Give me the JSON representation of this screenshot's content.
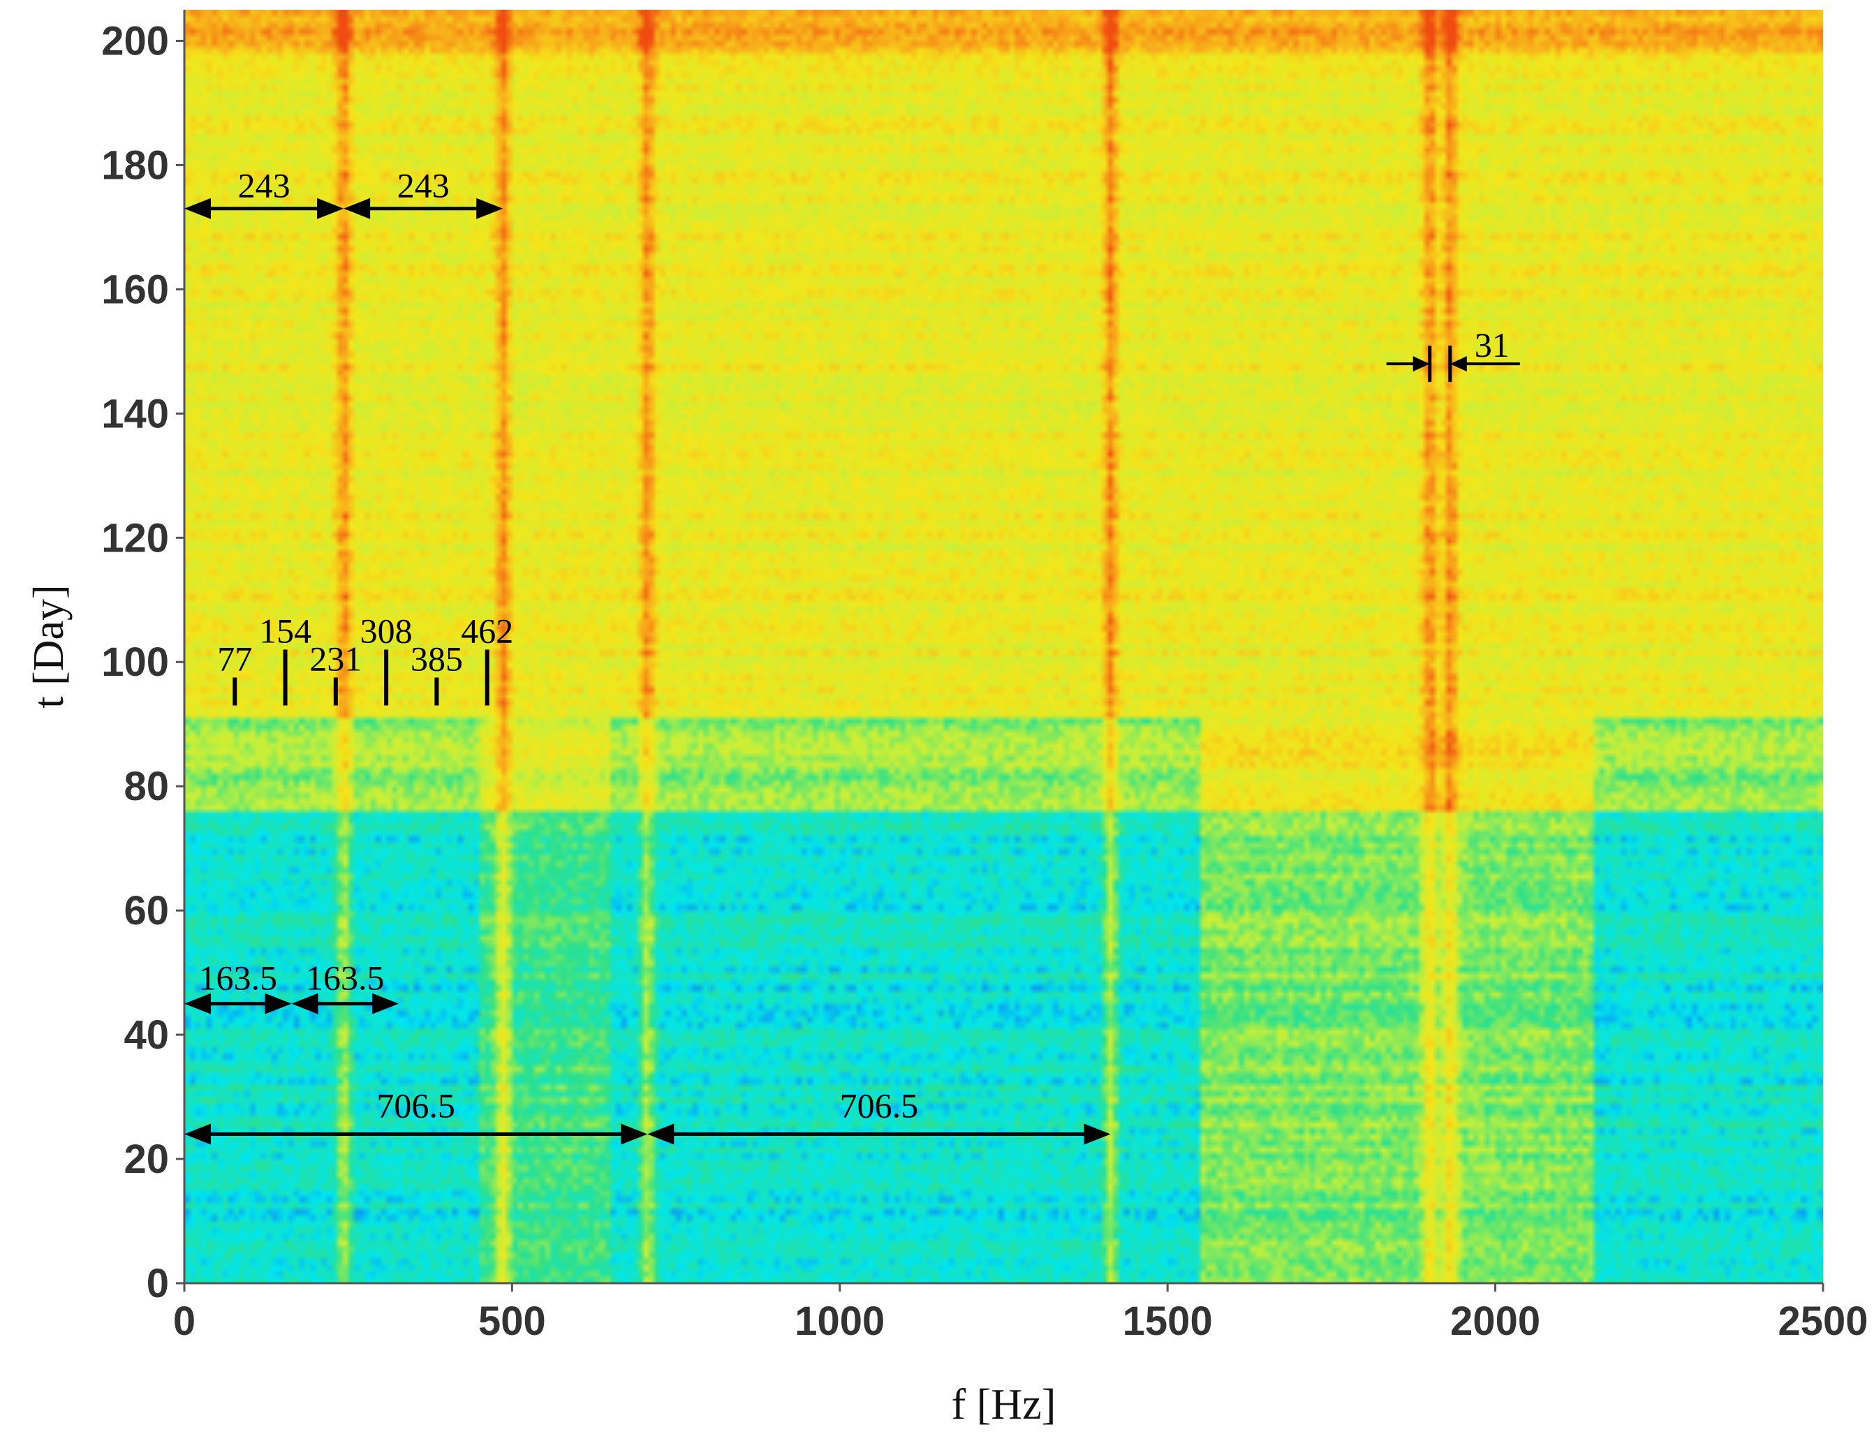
{
  "chart_data": {
    "type": "heatmap",
    "title": "",
    "xlabel": "f [Hz]",
    "ylabel": "t [Day]",
    "xlim": [
      0,
      2500
    ],
    "ylim": [
      0,
      205
    ],
    "xticks": [
      "0",
      "500",
      "1000",
      "1500",
      "2000",
      "2500"
    ],
    "yticks": [
      "0",
      "20",
      "40",
      "60",
      "80",
      "100",
      "120",
      "140",
      "160",
      "180",
      "200"
    ],
    "colormap": [
      "#1a3cf0",
      "#00e6f0",
      "#2ee08a",
      "#c6f03a",
      "#f5e61a",
      "#f8a81a",
      "#f04a10"
    ],
    "regions": [
      {
        "t_range": [
          0,
          76
        ],
        "base_level": 0.22,
        "note": "blue/cyan band"
      },
      {
        "t_range": [
          76,
          91
        ],
        "base_level": 0.45,
        "note": "green band"
      },
      {
        "t_range": [
          91,
          205
        ],
        "base_level": 0.62,
        "note": "yellow band"
      }
    ],
    "strong_lines_hz": [
      243,
      486,
      706.5,
      1413,
      1900,
      1931
    ],
    "annotations": {
      "arrows_243": {
        "label": "243",
        "t": 173,
        "spans": [
          [
            0,
            243
          ],
          [
            243,
            486
          ]
        ]
      },
      "arrows_163_5": {
        "label": "163.5",
        "t": 45,
        "spans": [
          [
            0,
            163.5
          ],
          [
            163.5,
            327
          ]
        ]
      },
      "arrows_706_5": {
        "label": "706.5",
        "t": 24,
        "spans": [
          [
            0,
            706.5
          ],
          [
            706.5,
            1413
          ]
        ]
      },
      "arrow_31": {
        "label": "31",
        "t": 148,
        "lines": [
          1900,
          1931
        ]
      },
      "harmonic_markers": [
        {
          "label": "77",
          "f": 77
        },
        {
          "label": "154",
          "f": 154
        },
        {
          "label": "231",
          "f": 231
        },
        {
          "label": "308",
          "f": 308
        },
        {
          "label": "385",
          "f": 385
        },
        {
          "label": "462",
          "f": 462
        }
      ]
    }
  }
}
